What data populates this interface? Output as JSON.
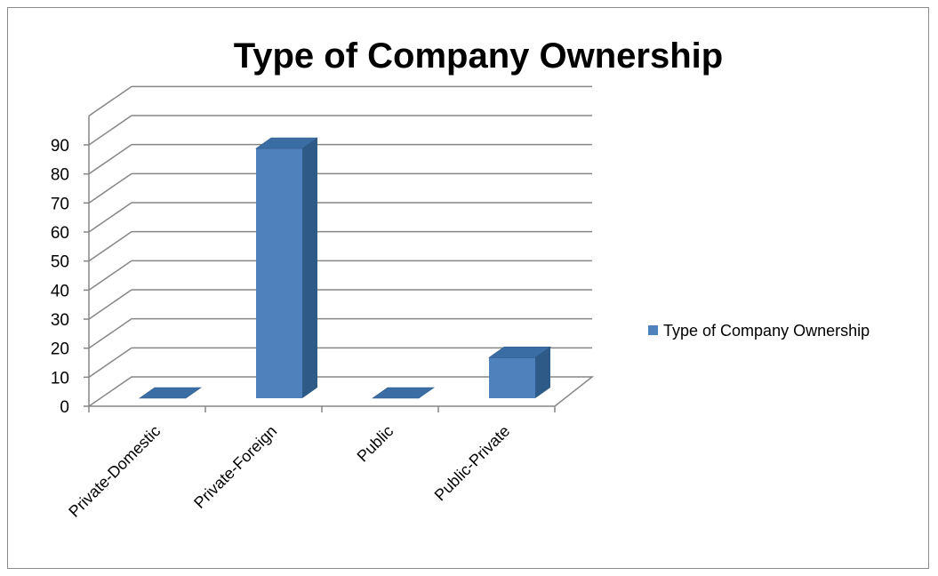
{
  "chart_data": {
    "type": "bar",
    "title": "Type of Company Ownership",
    "categories": [
      "Private-Domestic",
      "Private-Foreign",
      "Public",
      "Public-Private"
    ],
    "series": [
      {
        "name": "Type of Company Ownership",
        "values": [
          0,
          86,
          0,
          14
        ]
      }
    ],
    "y_ticks": [
      "0",
      "10",
      "20",
      "30",
      "40",
      "50",
      "60",
      "70",
      "80",
      "90"
    ],
    "ylim": [
      0,
      90
    ],
    "grid": true,
    "legend_position": "right",
    "style": "3d-column",
    "colors": {
      "bar_front": "#4F81BD",
      "bar_side": "#2E5A88",
      "bar_top": "#3B6DA5",
      "grid": "#868686"
    }
  }
}
